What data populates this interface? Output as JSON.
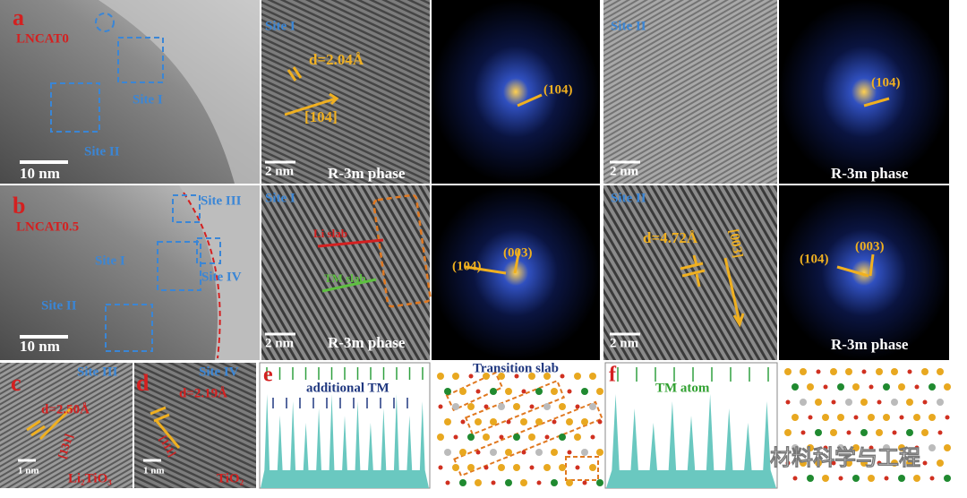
{
  "panels": {
    "a": {
      "label": "a",
      "sample": "LNCAT0",
      "sites": [
        "Site I",
        "Site II"
      ],
      "scale": "10 nm"
    },
    "a_site1": {
      "title": "Site I",
      "spacing": "d=2.04Å",
      "direction": "[104]",
      "scale": "2 nm",
      "phase": "R-3m phase"
    },
    "a_fft1": {
      "plane": "(104)"
    },
    "a_site2": {
      "title": "Site II",
      "scale": "2 nm"
    },
    "a_fft2": {
      "plane": "(104)",
      "phase": "R-3m phase"
    },
    "b": {
      "label": "b",
      "sample": "LNCAT0.5",
      "sites": [
        "Site III",
        "Site I",
        "Site IV",
        "Site II"
      ],
      "scale": "10 nm"
    },
    "b_site1": {
      "title": "Site I",
      "slabs": [
        "Li slab",
        "TM slab"
      ],
      "scale": "2 nm",
      "phase": "R-3m phase"
    },
    "b_fft1": {
      "planes": [
        "(104)",
        "(003)"
      ]
    },
    "b_site2": {
      "title": "Site II",
      "spacing": "d=4.72Å",
      "direction": "[003]",
      "scale": "2 nm"
    },
    "b_fft2": {
      "planes": [
        "(104)",
        "(003)"
      ],
      "phase": "R-3m phase"
    },
    "c": {
      "label": "c",
      "title": "Site III",
      "spacing": "d=2.50Å",
      "direction": "[131]",
      "scale": "1 nm",
      "phase": "Li₂TiO₃"
    },
    "d": {
      "label": "d",
      "title": "Site IV",
      "spacing": "d=2.19Å",
      "direction": "[111]",
      "scale": "1 nm",
      "phase": "TiO₂"
    },
    "e": {
      "label": "e",
      "note": "additional TM",
      "schematic": "Transition slab"
    },
    "f": {
      "label": "f",
      "note": "TM atom"
    },
    "watermark": "材料科学与工程"
  }
}
